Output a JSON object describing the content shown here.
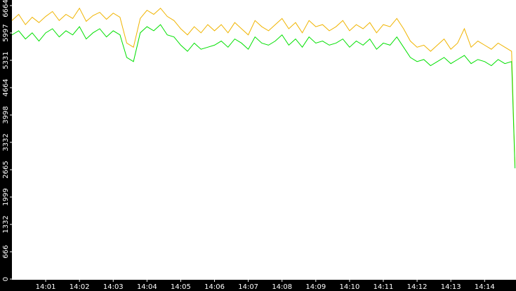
{
  "chart_data": {
    "type": "line",
    "xlim": [
      0,
      14.93
    ],
    "xticks": [
      {
        "value": 1,
        "label": "14:01"
      },
      {
        "value": 2,
        "label": "14:02"
      },
      {
        "value": 3,
        "label": "14:03"
      },
      {
        "value": 4,
        "label": "14:04"
      },
      {
        "value": 5,
        "label": "14:05"
      },
      {
        "value": 6,
        "label": "14:06"
      },
      {
        "value": 7,
        "label": "14:07"
      },
      {
        "value": 8,
        "label": "14:08"
      },
      {
        "value": 9,
        "label": "14:09"
      },
      {
        "value": 10,
        "label": "14:10"
      },
      {
        "value": 11,
        "label": "14:11"
      },
      {
        "value": 12,
        "label": "14:12"
      },
      {
        "value": 13,
        "label": "14:13"
      },
      {
        "value": 14,
        "label": "14:14"
      }
    ],
    "ylim": [
      0,
      6800
    ],
    "yticks": [
      0,
      666,
      1332,
      1999,
      2665,
      3332,
      3998,
      4664,
      5331,
      5997,
      6664
    ],
    "x": [
      0,
      0.2,
      0.4,
      0.6,
      0.8,
      1.0,
      1.2,
      1.4,
      1.6,
      1.8,
      2.0,
      2.2,
      2.4,
      2.6,
      2.8,
      3.0,
      3.2,
      3.4,
      3.6,
      3.8,
      4.0,
      4.2,
      4.4,
      4.6,
      4.8,
      5.0,
      5.2,
      5.4,
      5.6,
      5.8,
      6.0,
      6.2,
      6.4,
      6.6,
      6.8,
      7.0,
      7.2,
      7.4,
      7.6,
      7.8,
      8.0,
      8.2,
      8.4,
      8.6,
      8.8,
      9.0,
      9.2,
      9.4,
      9.6,
      9.8,
      10.0,
      10.2,
      10.4,
      10.6,
      10.8,
      11.0,
      11.2,
      11.4,
      11.6,
      11.8,
      12.0,
      12.2,
      12.4,
      12.6,
      12.8,
      13.0,
      13.2,
      13.4,
      13.6,
      13.8,
      14.0,
      14.2,
      14.4,
      14.6,
      14.8,
      14.9
    ],
    "series": [
      {
        "color": "#f0b400",
        "values": [
          6300,
          6450,
          6200,
          6380,
          6250,
          6400,
          6520,
          6300,
          6450,
          6350,
          6600,
          6280,
          6420,
          6500,
          6330,
          6480,
          6380,
          5750,
          5650,
          6350,
          6550,
          6450,
          6600,
          6400,
          6300,
          6100,
          5950,
          6150,
          6000,
          6200,
          6050,
          6200,
          6000,
          6250,
          6100,
          5950,
          6300,
          6150,
          6050,
          6200,
          6350,
          6100,
          6250,
          6000,
          6300,
          6150,
          6200,
          6050,
          6150,
          6300,
          6050,
          6200,
          6100,
          6250,
          6000,
          6200,
          6150,
          6350,
          6100,
          5800,
          5650,
          5700,
          5550,
          5700,
          5850,
          5600,
          5750,
          6100,
          5650,
          5800,
          5700,
          5600,
          5750,
          5650,
          5550,
          2750
        ]
      },
      {
        "color": "#00e000",
        "values": [
          5950,
          6050,
          5850,
          6000,
          5800,
          6000,
          6100,
          5900,
          6050,
          5950,
          6150,
          5850,
          6000,
          6100,
          5900,
          6050,
          5950,
          5400,
          5300,
          6000,
          6150,
          6050,
          6200,
          5950,
          5900,
          5700,
          5550,
          5750,
          5600,
          5650,
          5700,
          5800,
          5650,
          5850,
          5750,
          5600,
          5900,
          5750,
          5700,
          5800,
          5950,
          5700,
          5850,
          5650,
          5900,
          5750,
          5800,
          5700,
          5750,
          5850,
          5650,
          5800,
          5700,
          5850,
          5600,
          5750,
          5700,
          5900,
          5650,
          5400,
          5300,
          5350,
          5200,
          5300,
          5400,
          5250,
          5350,
          5450,
          5250,
          5350,
          5300,
          5200,
          5350,
          5250,
          5300,
          2700
        ]
      }
    ]
  }
}
